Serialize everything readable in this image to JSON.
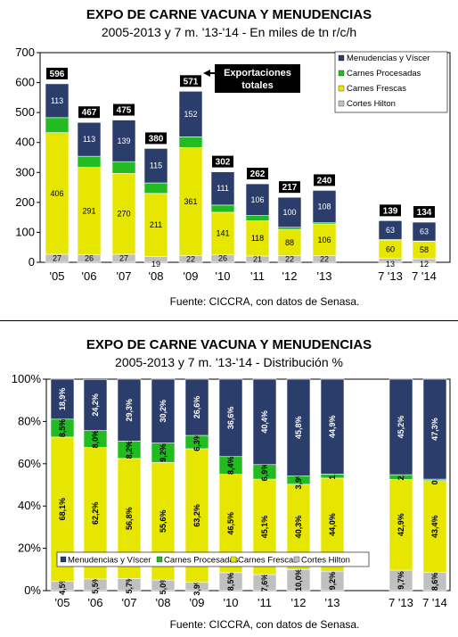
{
  "chart_data": [
    {
      "type": "bar",
      "stacked": true,
      "title": "EXPO DE CARNE VACUNA Y MENUDENCIAS",
      "subtitle": "2005-2013 y 7 m. '13-'14 - En miles de tn r/c/h",
      "source": "Fuente: CICCRA, con datos de Senasa.",
      "categories": [
        "'05",
        "'06",
        "'07",
        "'08",
        "'09",
        "'10",
        "'11",
        "'12",
        "'13",
        "7 '13",
        "7 '14"
      ],
      "ylim": [
        0,
        700
      ],
      "yticks": [
        0,
        100,
        200,
        300,
        400,
        500,
        600,
        700
      ],
      "grid": false,
      "legend_position": "top-right",
      "series": [
        {
          "name": "Cortes Hilton",
          "color": "#c0c0c0",
          "values": [
            27,
            26,
            27,
            19,
            22,
            26,
            21,
            22,
            22,
            13,
            12
          ],
          "labels": [
            "27",
            "26",
            "27",
            "19",
            "22",
            "26",
            "21",
            "22",
            "22",
            "13",
            "12"
          ]
        },
        {
          "name": "Carnes Frescas",
          "color": "#e6e600",
          "values": [
            406,
            291,
            270,
            211,
            361,
            141,
            118,
            88,
            106,
            60,
            58
          ],
          "labels": [
            "406",
            "291",
            "270",
            "211",
            "361",
            "141",
            "118",
            "88",
            "106",
            "60",
            "58"
          ]
        },
        {
          "name": "Carnes Procesadas",
          "color": "#22bb22",
          "values": [
            50,
            37,
            39,
            35,
            36,
            24,
            17,
            7,
            4,
            3,
            1
          ],
          "labels": [
            "",
            "",
            "",
            "",
            "",
            "",
            "",
            "",
            "",
            "",
            ""
          ]
        },
        {
          "name": "Menudencias y Víscer",
          "color": "#2b3d6b",
          "values": [
            113,
            113,
            139,
            115,
            152,
            111,
            106,
            100,
            108,
            63,
            63
          ],
          "labels": [
            "113",
            "113",
            "139",
            "115",
            "152",
            "111",
            "106",
            "100",
            "108",
            "63",
            "63"
          ]
        }
      ],
      "totals": [
        "596",
        "467",
        "475",
        "380",
        "571",
        "302",
        "262",
        "217",
        "240",
        "139",
        "134"
      ],
      "annotation": "Exportaciones totales"
    },
    {
      "type": "bar",
      "stacked": true,
      "percent": true,
      "title": "EXPO DE CARNE VACUNA Y MENUDENCIAS",
      "subtitle": "2005-2013 y 7 m. '13-'14 - Distribución %",
      "source": "Fuente: CICCRA, con datos de Senasa.",
      "categories": [
        "'05",
        "'06",
        "'07",
        "'08",
        "'09",
        "'10",
        "'11",
        "'12",
        "'13",
        "7 '13",
        "7 '14"
      ],
      "ylim": [
        0,
        100
      ],
      "yticks": [
        "0%",
        "20%",
        "40%",
        "60%",
        "80%",
        "100%"
      ],
      "grid": false,
      "legend_position": "bottom",
      "series": [
        {
          "name": "Cortes Hilton",
          "color": "#c0c0c0",
          "values": [
            4.5,
            5.5,
            5.7,
            5.0,
            3.9,
            8.5,
            7.6,
            10.0,
            9.2,
            9.7,
            8.6
          ],
          "labels": [
            "4,5%",
            "5,5%",
            "5,7%",
            "5,0%",
            "3,9%",
            "8,5%",
            "7,6%",
            "10,0%",
            "9,2%",
            "9,7%",
            "8,6%"
          ]
        },
        {
          "name": "Carnes Frescas",
          "color": "#e6e600",
          "values": [
            68.1,
            62.2,
            56.8,
            55.6,
            63.2,
            46.5,
            45.1,
            40.3,
            44.0,
            42.9,
            43.4
          ],
          "labels": [
            "68,1%",
            "62,2%",
            "56,8%",
            "55,6%",
            "63,2%",
            "46,5%",
            "45,1%",
            "40,3%",
            "44,0%",
            "42,9%",
            "43,4%"
          ]
        },
        {
          "name": "Carnes Procesadas",
          "color": "#22bb22",
          "values": [
            8.5,
            8.0,
            8.2,
            9.2,
            6.3,
            8.4,
            6.9,
            3.9,
            1.9,
            2.2,
            0.7
          ],
          "labels": [
            "8,5%",
            "8,0%",
            "8,2%",
            "9,2%",
            "6,3%",
            "8,4%",
            "6,9%",
            "3,9%",
            "1,9%",
            "2,2%",
            "0,7%"
          ]
        },
        {
          "name": "Menudencias y Víscer",
          "color": "#2b3d6b",
          "values": [
            18.9,
            24.2,
            29.3,
            30.2,
            26.6,
            36.6,
            40.4,
            45.8,
            44.9,
            45.2,
            47.3
          ],
          "labels": [
            "18,9%",
            "24,2%",
            "29,3%",
            "30,2%",
            "26,6%",
            "36,6%",
            "40,4%",
            "45,8%",
            "44,9%",
            "45,2%",
            "47,3%"
          ]
        }
      ]
    }
  ]
}
